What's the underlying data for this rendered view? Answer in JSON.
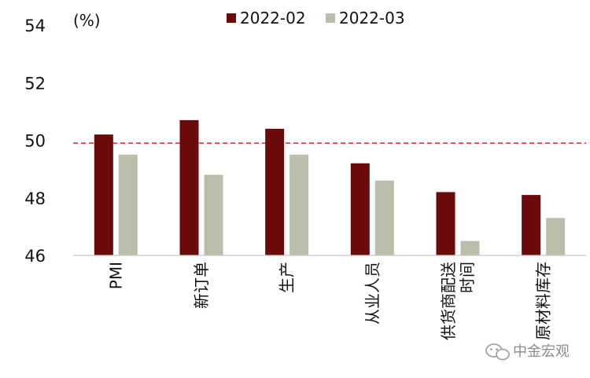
{
  "chart_data": {
    "type": "bar",
    "unit_label": "(%)",
    "categories": [
      "PMI",
      "新订单",
      "生产",
      "从业人员",
      "供货商配送时间",
      "原材料库存"
    ],
    "category_lines": [
      [
        "PMI"
      ],
      [
        "新订单"
      ],
      [
        "生产"
      ],
      [
        "从业人员"
      ],
      [
        "供货商配送",
        "时间"
      ],
      [
        "原材料库存"
      ]
    ],
    "series": [
      {
        "name": "2022-02",
        "color": "#6b0a0a",
        "values": [
          50.2,
          50.7,
          50.4,
          49.2,
          48.2,
          48.1
        ]
      },
      {
        "name": "2022-03",
        "color": "#bdbdab",
        "values": [
          49.5,
          48.8,
          49.5,
          48.6,
          46.5,
          47.3
        ]
      }
    ],
    "ylim": [
      46,
      54
    ],
    "yticks": [
      46,
      48,
      50,
      52,
      54
    ],
    "reference_line": {
      "value": 49.9,
      "color": "#e02424",
      "style": "dashed"
    },
    "legend_position": "top-center"
  },
  "watermark": {
    "text": "中金宏观",
    "icon": "wechat-icon"
  }
}
